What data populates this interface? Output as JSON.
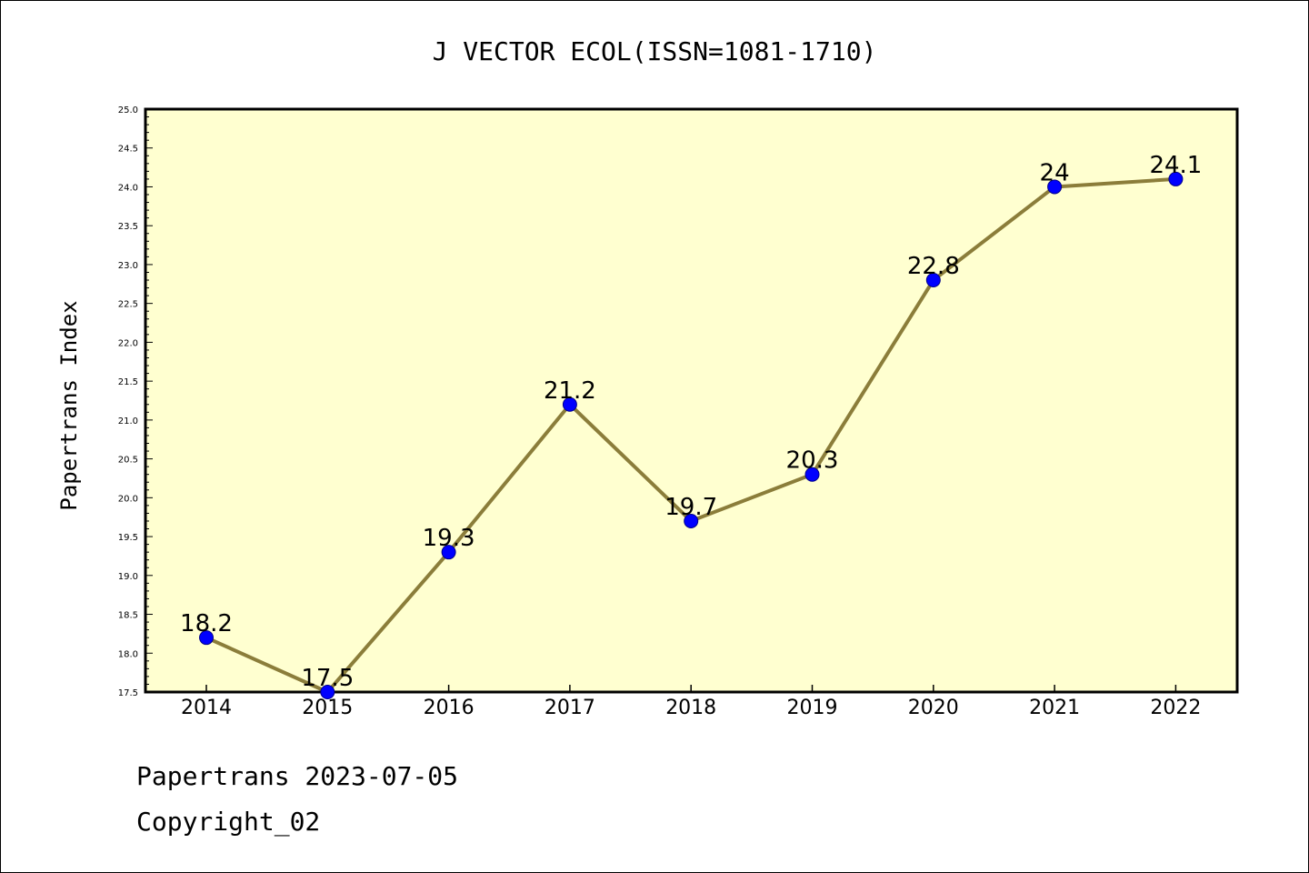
{
  "chart_data": {
    "type": "line",
    "title": "J VECTOR ECOL(ISSN=1081-1710)",
    "ylabel": "Papertrans Index",
    "xlabel": "",
    "categories": [
      "2014",
      "2015",
      "2016",
      "2017",
      "2018",
      "2019",
      "2020",
      "2021",
      "2022"
    ],
    "values": [
      18.2,
      17.5,
      19.3,
      21.2,
      19.7,
      20.3,
      22.8,
      24,
      24.1
    ],
    "data_labels": [
      "18.2",
      "17.5",
      "19.3",
      "21.2",
      "19.7",
      "20.3",
      "22.8",
      "24",
      "24.1"
    ],
    "ylim": [
      17.5,
      25.0
    ],
    "yticks": [
      "17.5",
      "18.0",
      "18.5",
      "19.0",
      "19.5",
      "20.0",
      "20.5",
      "21.0",
      "21.5",
      "22.0",
      "22.5",
      "23.0",
      "23.5",
      "24.0",
      "24.5",
      "25.0"
    ],
    "grid": false,
    "colors": {
      "plot_background": "#ffffd0",
      "line": "#8b7d3a",
      "marker": "#0000ff"
    }
  },
  "footer": {
    "line1": "Papertrans 2023-07-05",
    "line2": "Copyright_02"
  }
}
